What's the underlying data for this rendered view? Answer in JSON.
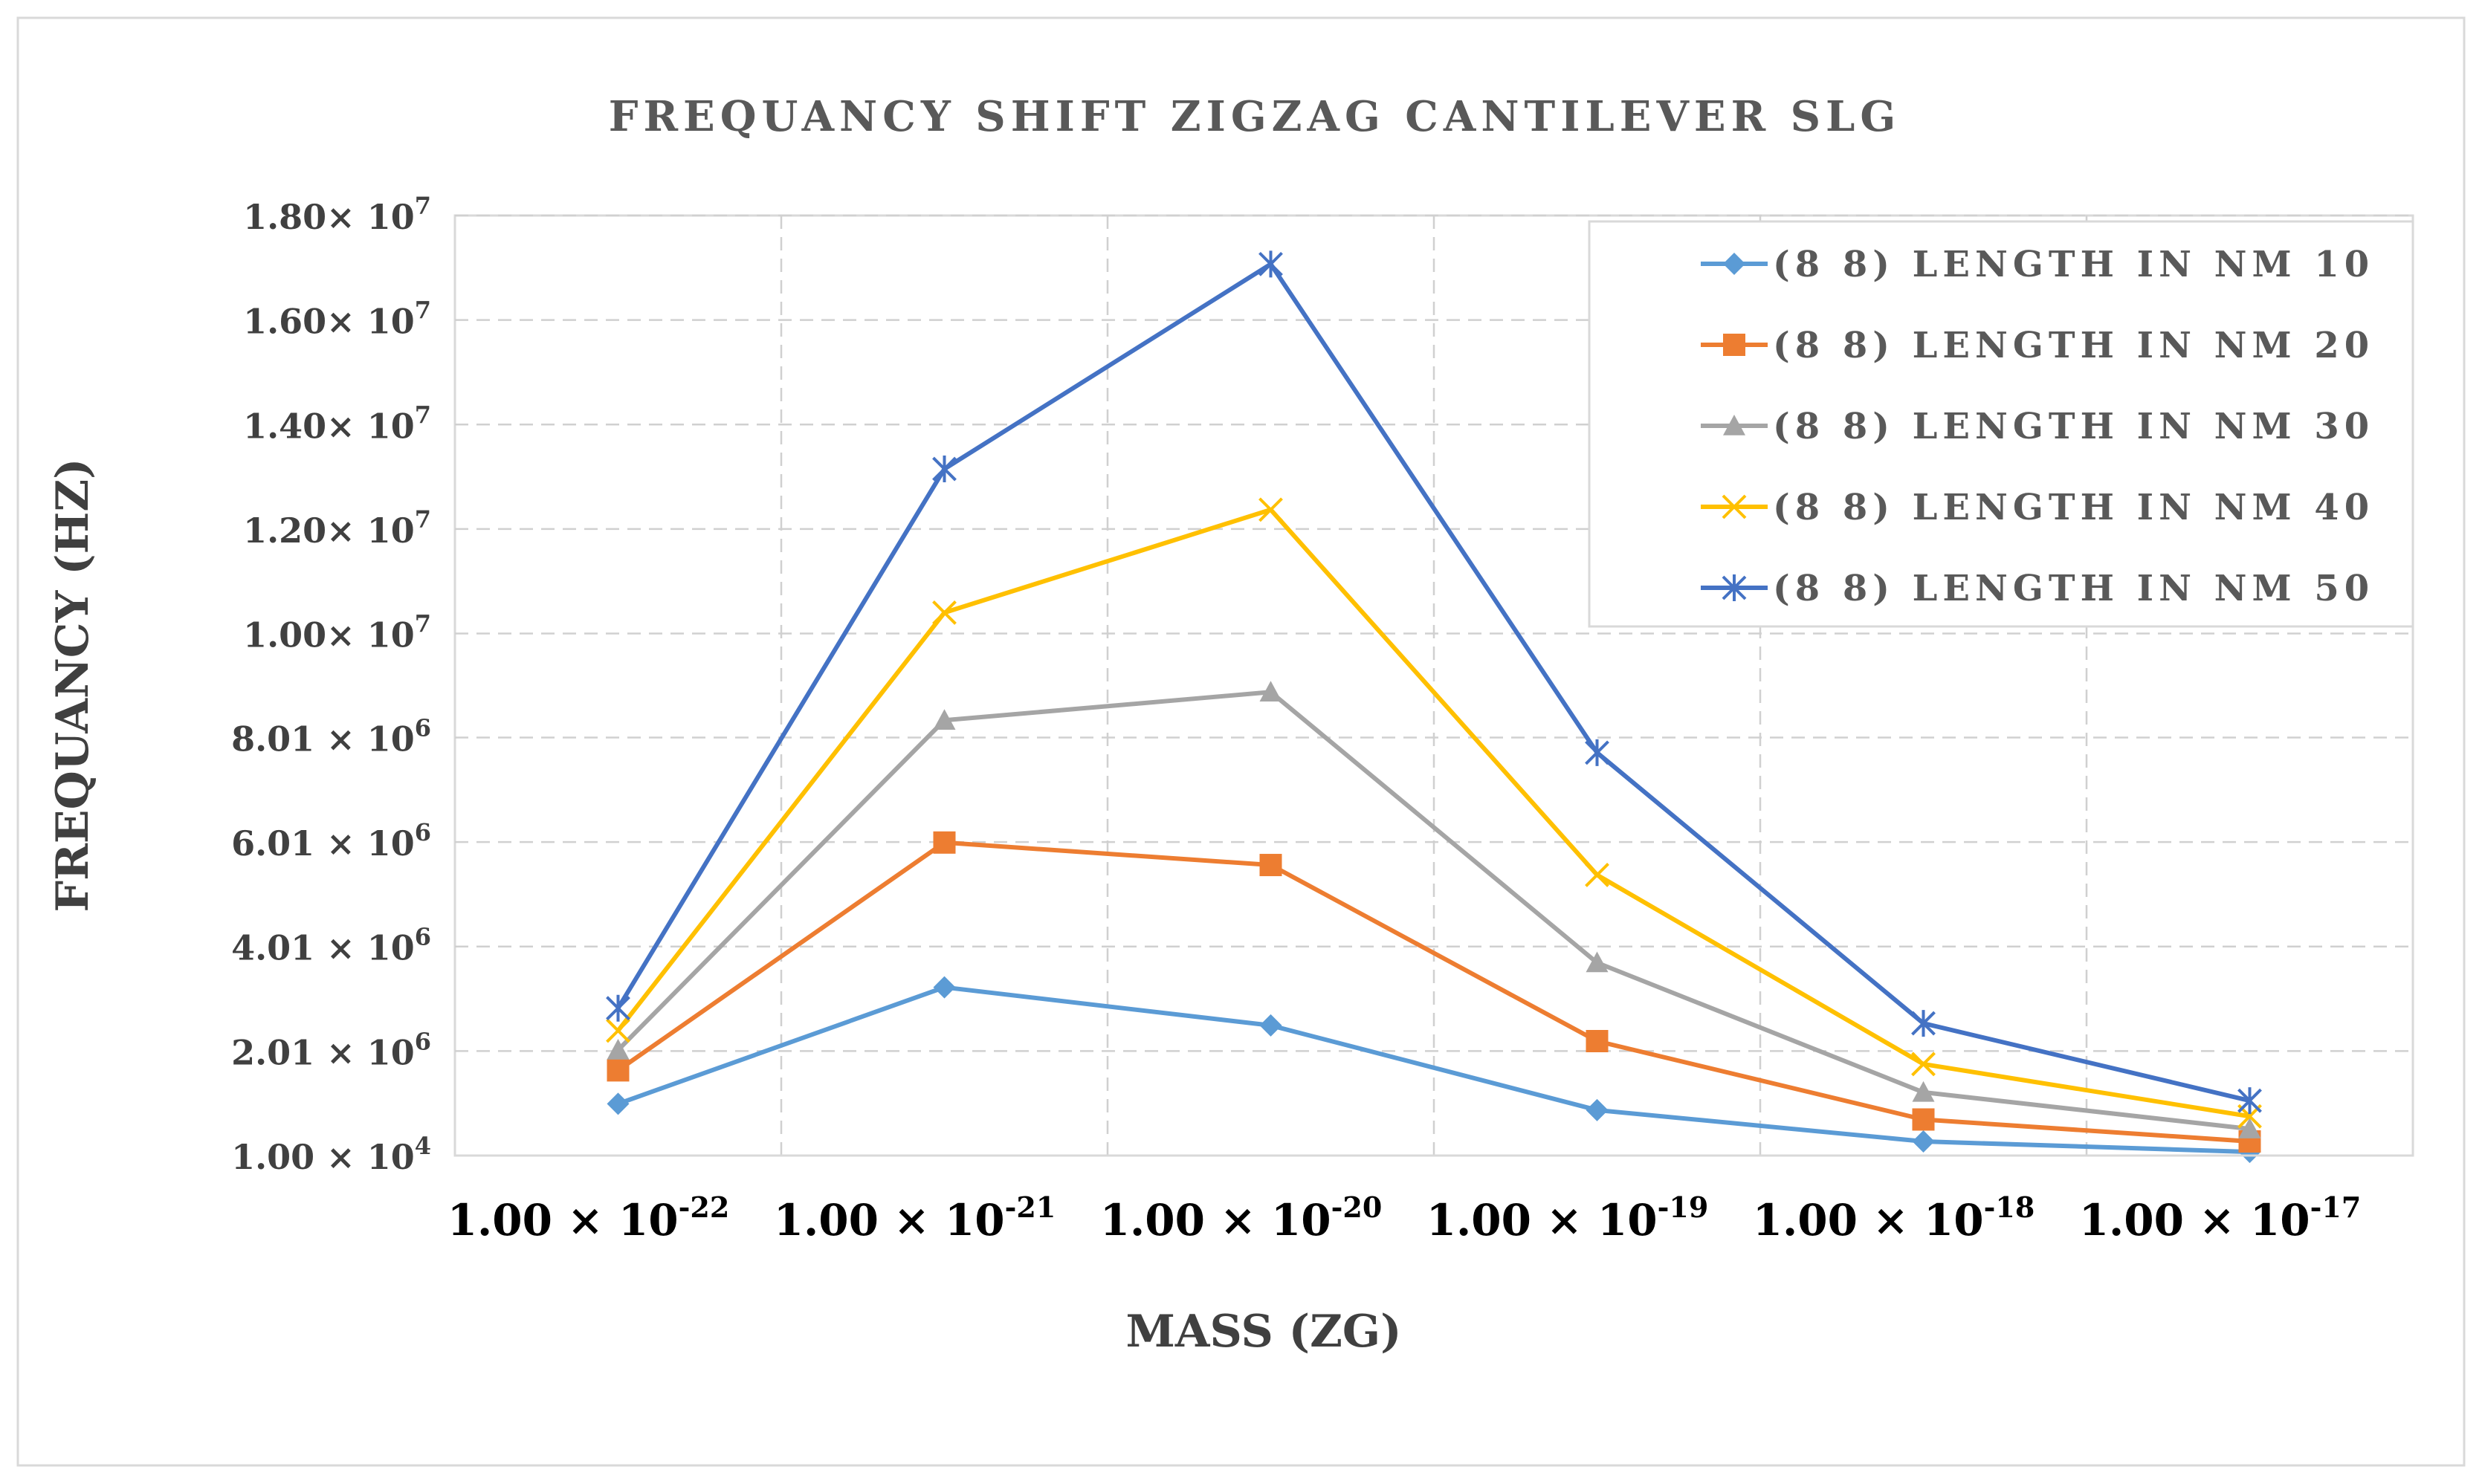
{
  "chart_data": {
    "type": "line",
    "title": "FREQUANCY SHIFT ZIGZAG CANTILEVER SLG",
    "xlabel": "MASS (ZG)",
    "ylabel": "FREQUANCY (HZ)",
    "categories": [
      {
        "base": "1.00 × 10",
        "exp": "-22"
      },
      {
        "base": "1.00 × 10",
        "exp": "-21"
      },
      {
        "base": "1.00 × 10",
        "exp": "-20"
      },
      {
        "base": "1.00 × 10",
        "exp": "-19"
      },
      {
        "base": "1.00 × 10",
        "exp": "-18"
      },
      {
        "base": "1.00 × 10",
        "exp": "-17"
      }
    ],
    "y_ticks": [
      {
        "base": "1.00 × 10",
        "exp": "4",
        "value": 10000
      },
      {
        "base": "2.01 × 10",
        "exp": "6",
        "value": 2010000
      },
      {
        "base": "4.01 × 10",
        "exp": "6",
        "value": 4010000
      },
      {
        "base": "6.01 × 10",
        "exp": "6",
        "value": 6010000
      },
      {
        "base": "8.01 × 10",
        "exp": "6",
        "value": 8010000
      },
      {
        "base": "1.00× 10",
        "exp": "7",
        "value": 10000000
      },
      {
        "base": "1.20× 10",
        "exp": "7",
        "value": 12000000
      },
      {
        "base": "1.40× 10",
        "exp": "7",
        "value": 14000000
      },
      {
        "base": "1.60× 10",
        "exp": "7",
        "value": 16000000
      },
      {
        "base": "1.80× 10",
        "exp": "7",
        "value": 18000000
      }
    ],
    "ylim": [
      10000,
      18000000
    ],
    "grid": true,
    "legend_position": "top-right",
    "series": [
      {
        "name": "(8 8) LENGTH IN NM 10",
        "marker": "diamond",
        "color": "#5B9BD5",
        "values": [
          1000000,
          3230000,
          2500000,
          880000,
          280000,
          80000
        ]
      },
      {
        "name": "(8 8) LENGTH IN NM 20",
        "marker": "square",
        "color": "#ED7D31",
        "values": [
          1640000,
          6000000,
          5570000,
          2200000,
          700000,
          280000
        ]
      },
      {
        "name": "(8 8) LENGTH IN NM 30",
        "marker": "triangle",
        "color": "#A5A5A5",
        "values": [
          2030000,
          8340000,
          8880000,
          3700000,
          1220000,
          520000
        ]
      },
      {
        "name": "(8 8) LENGTH IN NM 40",
        "marker": "x",
        "color": "#FFC000",
        "values": [
          2400000,
          10400000,
          12370000,
          5380000,
          1760000,
          760000
        ]
      },
      {
        "name": "(8 8) LENGTH IN NM 50",
        "marker": "star",
        "color": "#4472C4",
        "values": [
          2830000,
          13150000,
          17070000,
          7720000,
          2540000,
          1060000
        ]
      }
    ]
  }
}
